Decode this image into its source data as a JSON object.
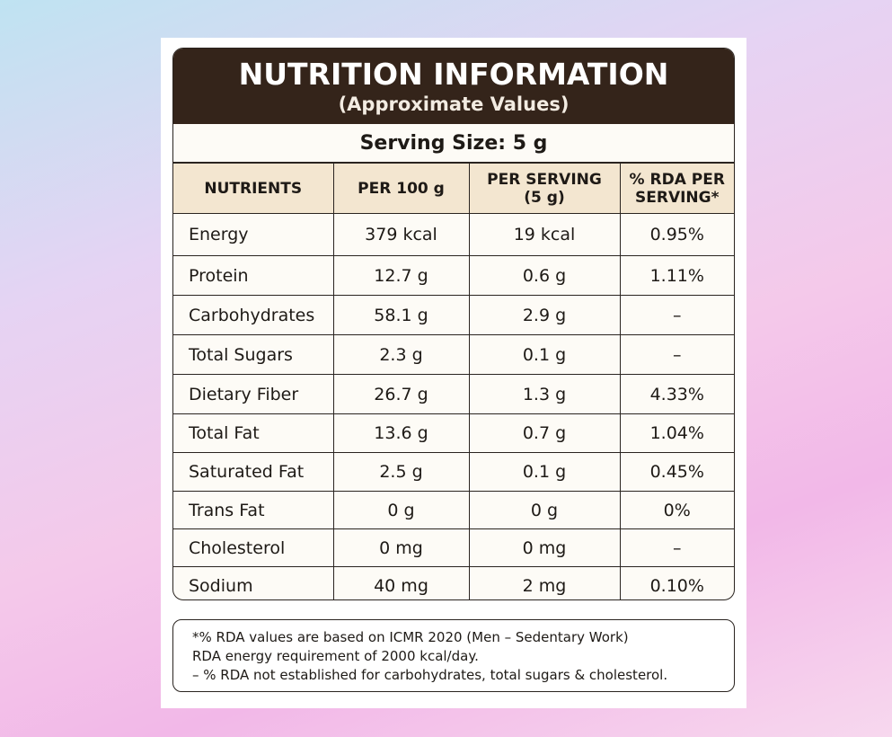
{
  "header": {
    "title": "NUTRITION INFORMATION",
    "subtitle": "(Approximate Values)"
  },
  "serving_size": "Serving Size: 5 g",
  "table": {
    "columns": [
      "NUTRIENTS",
      "PER 100 g",
      "PER SERVING\n(5 g)",
      "% RDA PER\nSERVING*"
    ],
    "rows": [
      [
        "Energy",
        "379 kcal",
        "19 kcal",
        "0.95%"
      ],
      [
        "Protein",
        "12.7 g",
        "0.6 g",
        "1.11%"
      ],
      [
        "Carbohydrates",
        "58.1 g",
        "2.9 g",
        "–"
      ],
      [
        "Total Sugars",
        "2.3 g",
        "0.1 g",
        "–"
      ],
      [
        "Dietary Fiber",
        "26.7 g",
        "1.3 g",
        "4.33%"
      ],
      [
        "Total Fat",
        "13.6 g",
        "0.7 g",
        "1.04%"
      ],
      [
        "Saturated Fat",
        "2.5 g",
        "0.1 g",
        "0.45%"
      ],
      [
        "Trans Fat",
        "0 g",
        "0 g",
        "0%"
      ],
      [
        "Cholesterol",
        "0 mg",
        "0 mg",
        "–"
      ],
      [
        "Sodium",
        "40 mg",
        "2 mg",
        "0.10%"
      ]
    ]
  },
  "footnotes": [
    "*% RDA values are based on ICMR 2020 (Men – Sedentary Work)",
    "RDA energy requirement of 2000 kcal/day.",
    "– % RDA not established for carbohydrates, total sugars & cholesterol."
  ]
}
